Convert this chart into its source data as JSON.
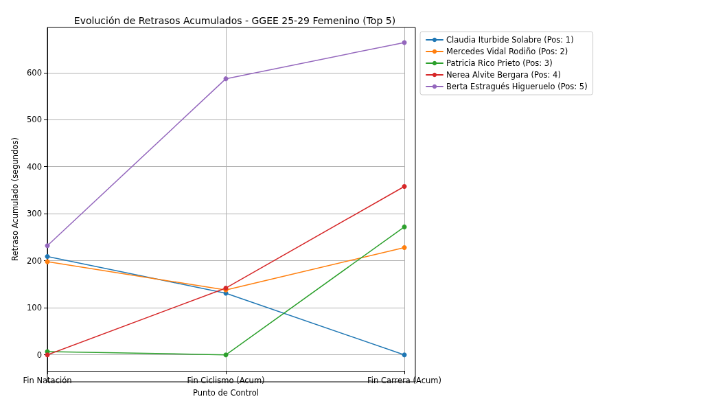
{
  "chart_data": {
    "type": "line",
    "title": "Evolución de Retrasos Acumulados - GGEE 25-29 Femenino (Top 5)",
    "xlabel": "Punto de Control",
    "ylabel": "Retraso Acumulado (segundos)",
    "categories": [
      "Fin Natación",
      "Fin Ciclismo (Acum)",
      "Fin Carrera (Acum)"
    ],
    "series": [
      {
        "name": "Claudia Iturbide Solabre (Pos: 1)",
        "color": "#1f77b4",
        "values": [
          209,
          131,
          0
        ]
      },
      {
        "name": "Mercedes Vidal Rodiño (Pos: 2)",
        "color": "#ff7f0e",
        "values": [
          198,
          138,
          228
        ]
      },
      {
        "name": "Patricia Rico Prieto (Pos: 3)",
        "color": "#2ca02c",
        "values": [
          7,
          0,
          272
        ]
      },
      {
        "name": "Nerea Alvite Bergara (Pos: 4)",
        "color": "#d62728",
        "values": [
          0,
          142,
          358
        ]
      },
      {
        "name": "Berta Estragués Higueruelo (Pos: 5)",
        "color": "#9467bd",
        "values": [
          232,
          587,
          664
        ]
      }
    ],
    "ylim": [
      -34,
      696
    ],
    "yticks": [
      0,
      100,
      200,
      300,
      400,
      500,
      600
    ],
    "grid": true,
    "legend": "top right",
    "marker": "circle",
    "line_style": "solid"
  }
}
